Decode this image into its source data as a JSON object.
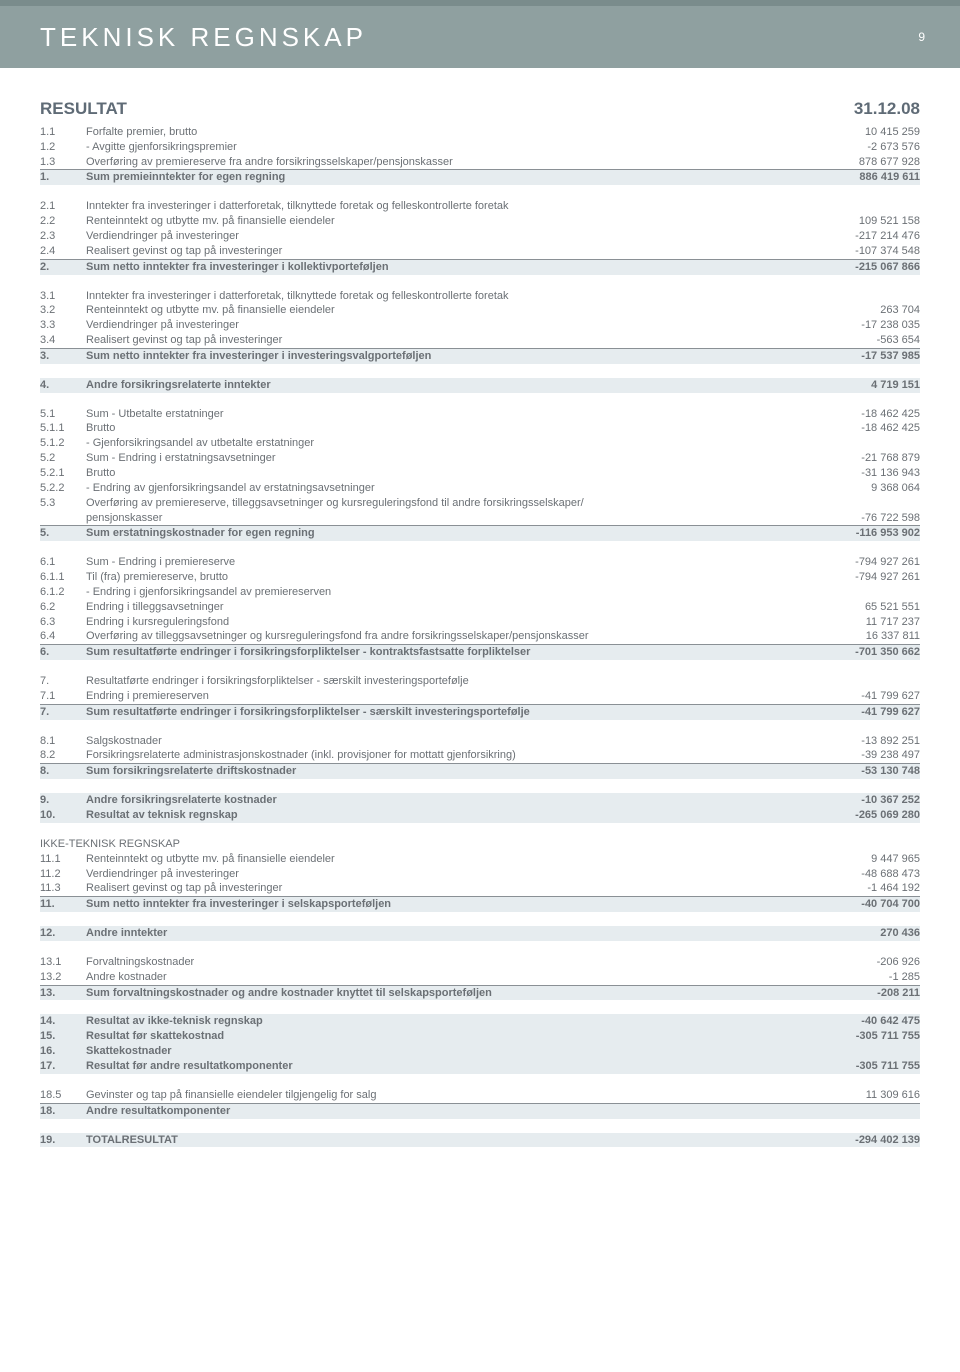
{
  "header": {
    "title": "TEKNISK REGNSKAP",
    "page": "9"
  },
  "section_title": "RESULTAT",
  "date": "31.12.08",
  "colors": {
    "topband": "#7a8c8c",
    "headerbg": "#8fa0a0",
    "text": "#6b7075",
    "bluebg": "#e6ecef",
    "border": "#8a9095"
  },
  "g1": {
    "r1": {
      "num": "1.1",
      "label": "Forfalte premier, brutto",
      "val": "10 415 259"
    },
    "r2": {
      "num": "1.2",
      "label": "- Avgitte gjenforsikringspremier",
      "val": "-2 673 576"
    },
    "r3": {
      "num": "1.3",
      "label": "Overføring av premiereserve fra andre forsikringsselskaper/pensjonskasser",
      "val": "878 677 928"
    },
    "r4": {
      "num": "1.",
      "label": "Sum premieinntekter for egen regning",
      "val": "886 419 611"
    }
  },
  "g2": {
    "r1": {
      "num": "2.1",
      "label": "Inntekter fra investeringer i datterforetak, tilknyttede foretak og felleskontrollerte foretak",
      "val": ""
    },
    "r2": {
      "num": "2.2",
      "label": "Renteinntekt og utbytte mv. på finansielle eiendeler",
      "val": "109 521 158"
    },
    "r3": {
      "num": "2.3",
      "label": "Verdiendringer på investeringer",
      "val": "-217 214 476"
    },
    "r4": {
      "num": "2.4",
      "label": "Realisert gevinst og tap på investeringer",
      "val": "-107 374 548"
    },
    "r5": {
      "num": "2.",
      "label": "Sum netto inntekter fra investeringer i kollektivporteføljen",
      "val": "-215 067 866"
    }
  },
  "g3": {
    "r1": {
      "num": "3.1",
      "label": "Inntekter fra investeringer i datterforetak, tilknyttede foretak og felleskontrollerte foretak",
      "val": ""
    },
    "r2": {
      "num": "3.2",
      "label": "Renteinntekt og utbytte mv. på finansielle eiendeler",
      "val": "263 704"
    },
    "r3": {
      "num": "3.3",
      "label": "Verdiendringer på investeringer",
      "val": "-17 238 035"
    },
    "r4": {
      "num": "3.4",
      "label": "Realisert gevinst og tap på investeringer",
      "val": "-563 654"
    },
    "r5": {
      "num": "3.",
      "label": "Sum netto inntekter fra investeringer i investeringsvalgporteføljen",
      "val": "-17 537 985"
    }
  },
  "g4": {
    "r1": {
      "num": "4.",
      "label": "Andre forsikringsrelaterte inntekter",
      "val": "4 719 151"
    }
  },
  "g5": {
    "r1": {
      "num": "5.1",
      "label": "Sum - Utbetalte erstatninger",
      "val": "-18 462 425"
    },
    "r2": {
      "num": "5.1.1",
      "label": "Brutto",
      "val": "-18 462 425"
    },
    "r3": {
      "num": "5.1.2",
      "label": "- Gjenforsikringsandel av utbetalte erstatninger",
      "val": ""
    },
    "r4": {
      "num": "5.2",
      "label": "Sum - Endring i erstatningsavsetninger",
      "val": "-21 768 879"
    },
    "r5": {
      "num": "5.2.1",
      "label": "Brutto",
      "val": "-31 136 943"
    },
    "r6": {
      "num": "5.2.2",
      "label": "- Endring av gjenforsikringsandel av erstatningsavsetninger",
      "val": "9 368 064"
    },
    "r7": {
      "num": "5.3",
      "label": "Overføring av premiereserve, tilleggsavsetninger og kursreguleringsfond til andre forsikringsselskaper/",
      "val": ""
    },
    "r8": {
      "num": "",
      "label": "pensjonskasser",
      "val": "-76 722 598"
    },
    "r9": {
      "num": "5.",
      "label": "Sum erstatningskostnader for egen regning",
      "val": "-116 953 902"
    }
  },
  "g6": {
    "r1": {
      "num": "6.1",
      "label": "Sum - Endring i premiereserve",
      "val": "-794 927 261"
    },
    "r2": {
      "num": "6.1.1",
      "label": "Til (fra) premiereserve, brutto",
      "val": "-794 927 261"
    },
    "r3": {
      "num": "6.1.2",
      "label": "- Endring i gjenforsikringsandel av premiereserven",
      "val": ""
    },
    "r4": {
      "num": "6.2",
      "label": "Endring i tilleggsavsetninger",
      "val": "65 521 551"
    },
    "r5": {
      "num": "6.3",
      "label": "Endring i kursreguleringsfond",
      "val": "11 717 237"
    },
    "r6": {
      "num": "6.4",
      "label": "Overføring av tilleggsavsetninger og kursreguleringsfond fra andre forsikringsselskaper/pensjonskasser",
      "val": "16 337 811"
    },
    "r7": {
      "num": "6.",
      "label": "Sum resultatførte endringer i forsikringsforpliktelser - kontraktsfastsatte forpliktelser",
      "val": "-701 350 662"
    }
  },
  "g7": {
    "r1": {
      "num": "7.",
      "label": "Resultatførte endringer i forsikringsforpliktelser - særskilt investeringsportefølje",
      "val": ""
    },
    "r2": {
      "num": "7.1",
      "label": "Endring i premiereserven",
      "val": "-41 799 627"
    },
    "r3": {
      "num": "7.",
      "label": "Sum resultatførte endringer i forsikringsforpliktelser - særskilt investeringsportefølje",
      "val": "-41 799 627"
    }
  },
  "g8": {
    "r1": {
      "num": "8.1",
      "label": "Salgskostnader",
      "val": "-13 892 251"
    },
    "r2": {
      "num": "8.2",
      "label": "Forsikringsrelaterte administrasjonskostnader (inkl. provisjoner for mottatt gjenforsikring)",
      "val": "-39 238 497"
    },
    "r3": {
      "num": "8.",
      "label": "Sum forsikringsrelaterte driftskostnader",
      "val": "-53 130 748"
    }
  },
  "g9": {
    "r1": {
      "num": "9.",
      "label": "Andre forsikringsrelaterte kostnader",
      "val": "-10 367 252"
    },
    "r2": {
      "num": "10.",
      "label": "Resultat av teknisk regnskap",
      "val": "-265 069 280"
    }
  },
  "g10": {
    "head": "IKKE-TEKNISK REGNSKAP",
    "r1": {
      "num": "11.1",
      "label": "Renteinntekt og utbytte mv. på finansielle eiendeler",
      "val": "9 447 965"
    },
    "r2": {
      "num": "11.2",
      "label": "Verdiendringer på investeringer",
      "val": "-48 688 473"
    },
    "r3": {
      "num": "11.3",
      "label": "Realisert gevinst og tap på investeringer",
      "val": "-1 464 192"
    },
    "r4": {
      "num": "11.",
      "label": "Sum netto inntekter fra investeringer i selskapsporteføljen",
      "val": "-40 704 700"
    }
  },
  "g12": {
    "r1": {
      "num": "12.",
      "label": "Andre inntekter",
      "val": "270 436"
    }
  },
  "g13": {
    "r1": {
      "num": "13.1",
      "label": "Forvaltningskostnader",
      "val": "-206 926"
    },
    "r2": {
      "num": "13.2",
      "label": "Andre kostnader",
      "val": "-1 285"
    },
    "r3": {
      "num": "13.",
      "label": "Sum forvaltningskostnader og andre kostnader knyttet til selskapsporteføljen",
      "val": "-208 211"
    }
  },
  "g14": {
    "r1": {
      "num": "14.",
      "label": "Resultat av ikke-teknisk regnskap",
      "val": "-40 642 475"
    },
    "r2": {
      "num": "15.",
      "label": "Resultat før skattekostnad",
      "val": "-305 711 755"
    },
    "r3": {
      "num": "16.",
      "label": "Skattekostnader",
      "val": ""
    },
    "r4": {
      "num": "17.",
      "label": "Resultat før andre resultatkomponenter",
      "val": "-305 711 755"
    }
  },
  "g18": {
    "r1": {
      "num": "18.5",
      "label": "Gevinster og tap på finansielle eiendeler tilgjengelig for salg",
      "val": "11 309 616"
    },
    "r2": {
      "num": "18.",
      "label": "Andre resultatkomponenter",
      "val": ""
    }
  },
  "g19": {
    "r1": {
      "num": "19.",
      "label": "TOTALRESULTAT",
      "val": "-294 402 139"
    }
  }
}
